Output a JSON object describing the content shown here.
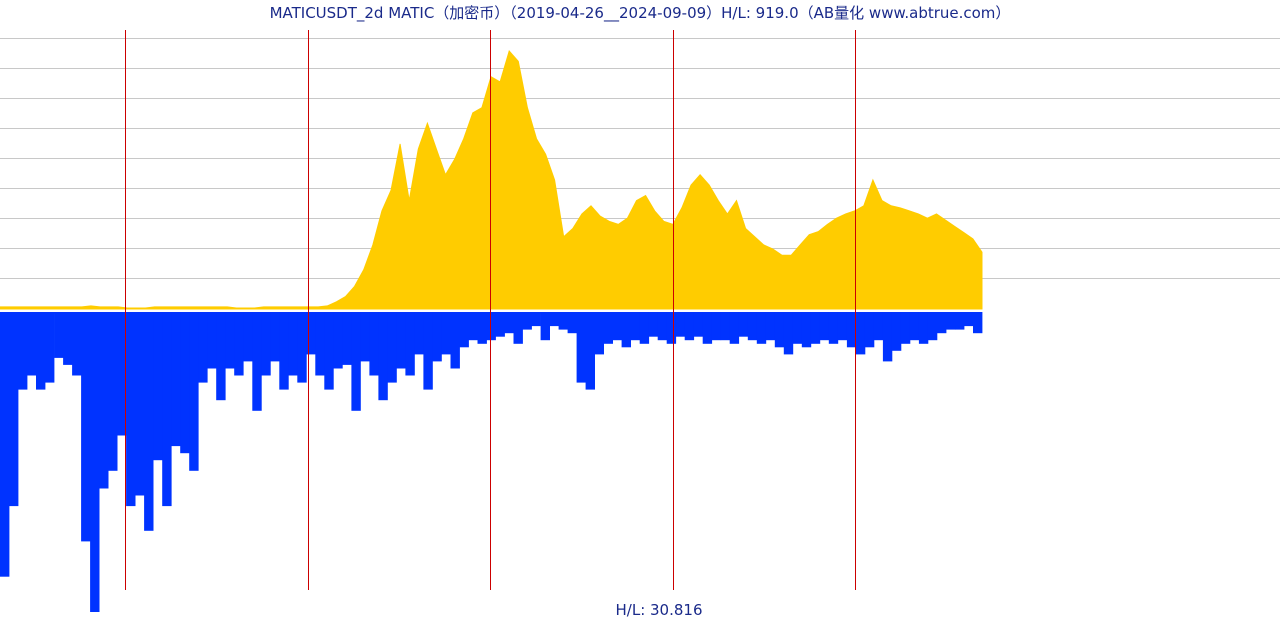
{
  "title": "MATICUSDT_2d MATIC（加密币）（2019-04-26__2024-09-09）H/L: 919.0（AB量化  www.abtrue.com）",
  "footer": "H/L: 30.816",
  "colors": {
    "price_fill": "#ffcc00",
    "volume_fill": "#0033ff",
    "grid": "#c8c8c8",
    "year_marker": "#cc0000",
    "text": "#1a2a8a"
  },
  "chart_data": [
    {
      "type": "area",
      "series": [
        {
          "values": [
            0.02,
            0.02,
            0.02,
            0.02,
            0.02,
            0.02,
            0.02,
            0.02,
            0.02,
            0.02,
            0.03,
            0.02,
            0.02,
            0.02,
            0.01,
            0.01,
            0.01,
            0.02,
            0.02,
            0.02,
            0.02,
            0.02,
            0.02,
            0.02,
            0.02,
            0.02,
            0.01,
            0.01,
            0.01,
            0.02,
            0.02,
            0.02,
            0.02,
            0.02,
            0.02,
            0.02,
            0.03,
            0.07,
            0.12,
            0.22,
            0.38,
            0.62,
            0.95,
            1.15,
            1.6,
            1.05,
            1.55,
            1.8,
            1.55,
            1.3,
            1.45,
            1.65,
            1.9,
            1.95,
            2.25,
            2.2,
            2.5,
            2.4,
            1.95,
            1.65,
            1.5,
            1.25,
            0.7,
            0.78,
            0.92,
            1.0,
            0.9,
            0.85,
            0.82,
            0.88,
            1.05,
            1.1,
            0.95,
            0.85,
            0.82,
            0.98,
            1.2,
            1.3,
            1.2,
            1.05,
            0.92,
            1.05,
            0.78,
            0.7,
            0.62,
            0.58,
            0.52,
            0.52,
            0.62,
            0.72,
            0.75,
            0.82,
            0.88,
            0.92,
            0.95,
            1.0,
            1.25,
            1.05,
            1.0,
            0.98,
            0.95,
            0.92,
            0.88,
            0.92,
            0.86,
            0.8,
            0.74,
            0.68,
            0.55
          ]
        }
      ],
      "ylim": [
        0,
        2.8
      ],
      "grid": true
    },
    {
      "type": "bar",
      "series": [
        {
          "values": [
            7.5,
            5.5,
            2.2,
            1.8,
            2.2,
            2.0,
            1.3,
            1.5,
            1.8,
            6.5,
            8.5,
            5.0,
            4.5,
            3.5,
            5.5,
            5.2,
            6.2,
            4.2,
            5.5,
            3.8,
            4.0,
            4.5,
            2.0,
            1.6,
            2.5,
            1.6,
            1.8,
            1.4,
            2.8,
            1.8,
            1.4,
            2.2,
            1.8,
            2.0,
            1.2,
            1.8,
            2.2,
            1.6,
            1.5,
            2.8,
            1.4,
            1.8,
            2.5,
            2.0,
            1.6,
            1.8,
            1.2,
            2.2,
            1.4,
            1.2,
            1.6,
            1.0,
            0.8,
            0.9,
            0.8,
            0.7,
            0.6,
            0.9,
            0.5,
            0.4,
            0.8,
            0.4,
            0.5,
            0.6,
            2.0,
            2.2,
            1.2,
            0.9,
            0.8,
            1.0,
            0.8,
            0.9,
            0.7,
            0.8,
            0.9,
            0.7,
            0.8,
            0.7,
            0.9,
            0.8,
            0.8,
            0.9,
            0.7,
            0.8,
            0.9,
            0.8,
            1.0,
            1.2,
            0.9,
            1.0,
            0.9,
            0.8,
            0.9,
            0.8,
            1.0,
            1.2,
            1.0,
            0.8,
            1.4,
            1.1,
            0.9,
            0.8,
            0.9,
            0.8,
            0.6,
            0.5,
            0.5,
            0.4,
            0.6
          ]
        }
      ],
      "grid": false
    }
  ]
}
